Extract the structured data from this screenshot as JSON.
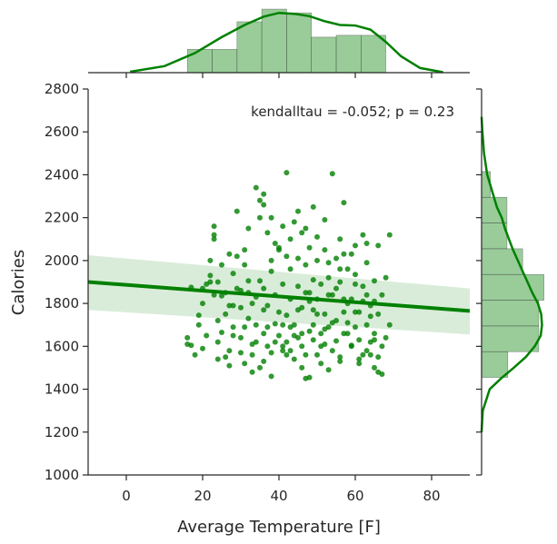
{
  "chart_data": {
    "type": "scatter",
    "title": "",
    "xlabel": "Average Temperature [F]",
    "ylabel": "Calories",
    "xlim": [
      -10,
      90
    ],
    "ylim": [
      1000,
      2800
    ],
    "xticks": [
      0,
      20,
      40,
      60,
      80
    ],
    "yticks": [
      1000,
      1200,
      1400,
      1600,
      1800,
      2000,
      2200,
      2400,
      2600,
      2800
    ],
    "xtick_labels": [
      "0",
      "20",
      "40",
      "60",
      "80"
    ],
    "ytick_labels": [
      "1000",
      "1200",
      "1400",
      "1600",
      "1800",
      "2000",
      "2200",
      "2400",
      "2600",
      "2800"
    ],
    "annotation": "kendalltau = -0.052; p = 0.23",
    "color": "#008000",
    "grid": false,
    "regression": {
      "x": [
        -10,
        90
      ],
      "y": [
        1900,
        1765
      ],
      "ci_upper": [
        2025,
        1870
      ],
      "ci_lower": [
        1770,
        1655
      ]
    },
    "marginal_x": {
      "bin_edges": [
        16,
        22.5,
        29,
        35.5,
        42,
        48.5,
        55,
        61.5,
        68
      ],
      "density": [
        0.005,
        0.005,
        0.0109,
        0.0136,
        0.0128,
        0.0076,
        0.008,
        0.008
      ],
      "kde_x": [
        1,
        10,
        18,
        25,
        31,
        36,
        40,
        44,
        48,
        52,
        56,
        60,
        64,
        68,
        72,
        77,
        83
      ],
      "kde_y": [
        0.0002,
        0.0014,
        0.0042,
        0.0076,
        0.0102,
        0.012,
        0.0128,
        0.0126,
        0.0121,
        0.011,
        0.0102,
        0.0101,
        0.0092,
        0.0066,
        0.0035,
        0.001,
        0.0001
      ]
    },
    "marginal_y": {
      "bin_edges": [
        1455,
        1575,
        1695,
        1815,
        1935,
        2055,
        2175,
        2295,
        2415
      ],
      "density": [
        0.00065,
        0.00142,
        0.00142,
        0.00155,
        0.00102,
        0.00063,
        0.00063,
        0.00022
      ],
      "kde_y": [
        1200,
        1300,
        1400,
        1450,
        1500,
        1550,
        1600,
        1650,
        1700,
        1750,
        1800,
        1850,
        1900,
        1950,
        2000,
        2050,
        2100,
        2150,
        2200,
        2250,
        2300,
        2400,
        2500,
        2600,
        2670
      ],
      "kde_x": [
        0.0,
        3e-05,
        0.0002,
        0.00048,
        0.0008,
        0.0011,
        0.00132,
        0.00147,
        0.0015,
        0.00148,
        0.0014,
        0.00126,
        0.00114,
        0.00102,
        0.0009,
        0.00078,
        0.00068,
        0.00058,
        0.0005,
        0.00038,
        0.0003,
        0.00014,
        6e-05,
        2e-05,
        0.0
      ]
    },
    "points": [
      [
        16,
        1640
      ],
      [
        17,
        1605
      ],
      [
        18,
        1560
      ],
      [
        19,
        1700
      ],
      [
        20,
        1590
      ],
      [
        20,
        1800
      ],
      [
        21,
        1890
      ],
      [
        22,
        1930
      ],
      [
        23,
        2160
      ],
      [
        23,
        2100
      ],
      [
        24,
        1620
      ],
      [
        24,
        1540
      ],
      [
        25,
        1665
      ],
      [
        25,
        1835
      ],
      [
        26,
        1550
      ],
      [
        26,
        1750
      ],
      [
        27,
        1510
      ],
      [
        27,
        1580
      ],
      [
        28,
        1650
      ],
      [
        28,
        1790
      ],
      [
        29,
        1870
      ],
      [
        29,
        2020
      ],
      [
        30,
        1860
      ],
      [
        30,
        1640
      ],
      [
        31,
        1520
      ],
      [
        31,
        1690
      ],
      [
        32,
        1905
      ],
      [
        32,
        1730
      ],
      [
        33,
        1610
      ],
      [
        33,
        1560
      ],
      [
        34,
        1830
      ],
      [
        34,
        1700
      ],
      [
        35,
        1905
      ],
      [
        35,
        1500
      ],
      [
        36,
        1660
      ],
      [
        36,
        1870
      ],
      [
        37,
        1790
      ],
      [
        37,
        1600
      ],
      [
        38,
        1570
      ],
      [
        38,
        1950
      ],
      [
        39,
        1705
      ],
      [
        39,
        1840
      ],
      [
        40,
        1650
      ],
      [
        40,
        2060
      ],
      [
        41,
        1890
      ],
      [
        41,
        1580
      ],
      [
        42,
        1745
      ],
      [
        42,
        1620
      ],
      [
        43,
        1960
      ],
      [
        43,
        1820
      ],
      [
        44,
        1700
      ],
      [
        44,
        1540
      ],
      [
        45,
        1880
      ],
      [
        45,
        1640
      ],
      [
        46,
        1780
      ],
      [
        46,
        1600
      ],
      [
        47,
        1560
      ],
      [
        47,
        1450
      ],
      [
        48,
        1850
      ],
      [
        48,
        1670
      ],
      [
        49,
        1910
      ],
      [
        49,
        1700
      ],
      [
        50,
        1820
      ],
      [
        50,
        1560
      ],
      [
        51,
        1660
      ],
      [
        51,
        1890
      ],
      [
        52,
        1610
      ],
      [
        52,
        1750
      ],
      [
        53,
        1990
      ],
      [
        53,
        1690
      ],
      [
        54,
        1580
      ],
      [
        54,
        1840
      ],
      [
        55,
        1720
      ],
      [
        55,
        1625
      ],
      [
        56,
        1900
      ],
      [
        56,
        1530
      ],
      [
        57,
        1760
      ],
      [
        57,
        1660
      ],
      [
        58,
        1960
      ],
      [
        58,
        1710
      ],
      [
        59,
        1820
      ],
      [
        59,
        1605
      ],
      [
        60,
        1690
      ],
      [
        60,
        1935
      ],
      [
        61,
        1760
      ],
      [
        61,
        1630
      ],
      [
        62,
        1880
      ],
      [
        62,
        1810
      ],
      [
        63,
        1700
      ],
      [
        63,
        1990
      ],
      [
        64,
        1790
      ],
      [
        64,
        1560
      ],
      [
        65,
        1905
      ],
      [
        65,
        1630
      ],
      [
        66,
        2070
      ],
      [
        66,
        1750
      ],
      [
        67,
        1840
      ],
      [
        68,
        1640
      ],
      [
        69,
        2120
      ],
      [
        17,
        1875
      ],
      [
        22,
        1900
      ],
      [
        26,
        1850
      ],
      [
        31,
        2050
      ],
      [
        35,
        2280
      ],
      [
        36,
        2310
      ],
      [
        38,
        2200
      ],
      [
        41,
        2160
      ],
      [
        44,
        2180
      ],
      [
        46,
        2130
      ],
      [
        48,
        2060
      ],
      [
        50,
        2110
      ],
      [
        52,
        2050
      ],
      [
        55,
        2010
      ],
      [
        57,
        2030
      ],
      [
        60,
        2070
      ],
      [
        62,
        2120
      ],
      [
        19,
        1745
      ],
      [
        24,
        1900
      ],
      [
        28,
        1940
      ],
      [
        33,
        1800
      ],
      [
        37,
        2130
      ],
      [
        39,
        2080
      ],
      [
        42,
        2020
      ],
      [
        45,
        2010
      ],
      [
        47,
        1980
      ],
      [
        50,
        2000
      ],
      [
        53,
        1920
      ],
      [
        56,
        1960
      ],
      [
        59,
        2030
      ],
      [
        63,
        2080
      ],
      [
        66,
        1480
      ],
      [
        16,
        1610
      ],
      [
        21,
        1650
      ],
      [
        24,
        1720
      ],
      [
        27,
        1790
      ],
      [
        30,
        1570
      ],
      [
        33,
        1480
      ],
      [
        36,
        1530
      ],
      [
        38,
        1460
      ],
      [
        41,
        1600
      ],
      [
        43,
        1580
      ],
      [
        46,
        1500
      ],
      [
        48,
        1455
      ],
      [
        51,
        1520
      ],
      [
        53,
        1490
      ],
      [
        56,
        1550
      ],
      [
        59,
        1600
      ],
      [
        61,
        1520
      ],
      [
        64,
        1620
      ],
      [
        67,
        1470
      ],
      [
        34,
        2340
      ],
      [
        42,
        2410
      ],
      [
        54,
        2405
      ],
      [
        56,
        2100
      ],
      [
        35,
        2200
      ],
      [
        40,
        2050
      ],
      [
        45,
        2230
      ],
      [
        49,
        2250
      ],
      [
        57,
        2270
      ],
      [
        22,
        2000
      ],
      [
        23,
        2120
      ],
      [
        25,
        1980
      ],
      [
        29,
        2230
      ],
      [
        32,
        2150
      ],
      [
        36,
        2260
      ],
      [
        38,
        2000
      ],
      [
        43,
        2100
      ],
      [
        47,
        2150
      ],
      [
        52,
        2190
      ],
      [
        55,
        1870
      ],
      [
        58,
        1800
      ],
      [
        60,
        1760
      ],
      [
        63,
        1840
      ],
      [
        65,
        1660
      ],
      [
        68,
        1920
      ],
      [
        27,
        2030
      ],
      [
        31,
        1980
      ],
      [
        44,
        1650
      ],
      [
        49,
        1770
      ],
      [
        37,
        1690
      ],
      [
        39,
        1620
      ],
      [
        40,
        1760
      ],
      [
        42,
        1560
      ],
      [
        46,
        1660
      ],
      [
        48,
        1810
      ],
      [
        50,
        1750
      ],
      [
        51,
        1600
      ],
      [
        53,
        1840
      ],
      [
        54,
        1710
      ],
      [
        58,
        1660
      ],
      [
        61,
        1540
      ],
      [
        62,
        1560
      ],
      [
        64,
        1740
      ],
      [
        65,
        1810
      ],
      [
        66,
        1550
      ],
      [
        67,
        1600
      ],
      [
        69,
        1700
      ],
      [
        20,
        1870
      ],
      [
        23,
        1840
      ],
      [
        28,
        1690
      ],
      [
        30,
        1780
      ],
      [
        32,
        1850
      ],
      [
        34,
        1620
      ],
      [
        36,
        1770
      ],
      [
        41,
        1700
      ],
      [
        43,
        1690
      ],
      [
        45,
        1770
      ],
      [
        47,
        1850
      ],
      [
        49,
        1630
      ],
      [
        52,
        1680
      ],
      [
        57,
        1820
      ],
      [
        60,
        1890
      ],
      [
        63,
        1580
      ],
      [
        65,
        1500
      ]
    ]
  }
}
